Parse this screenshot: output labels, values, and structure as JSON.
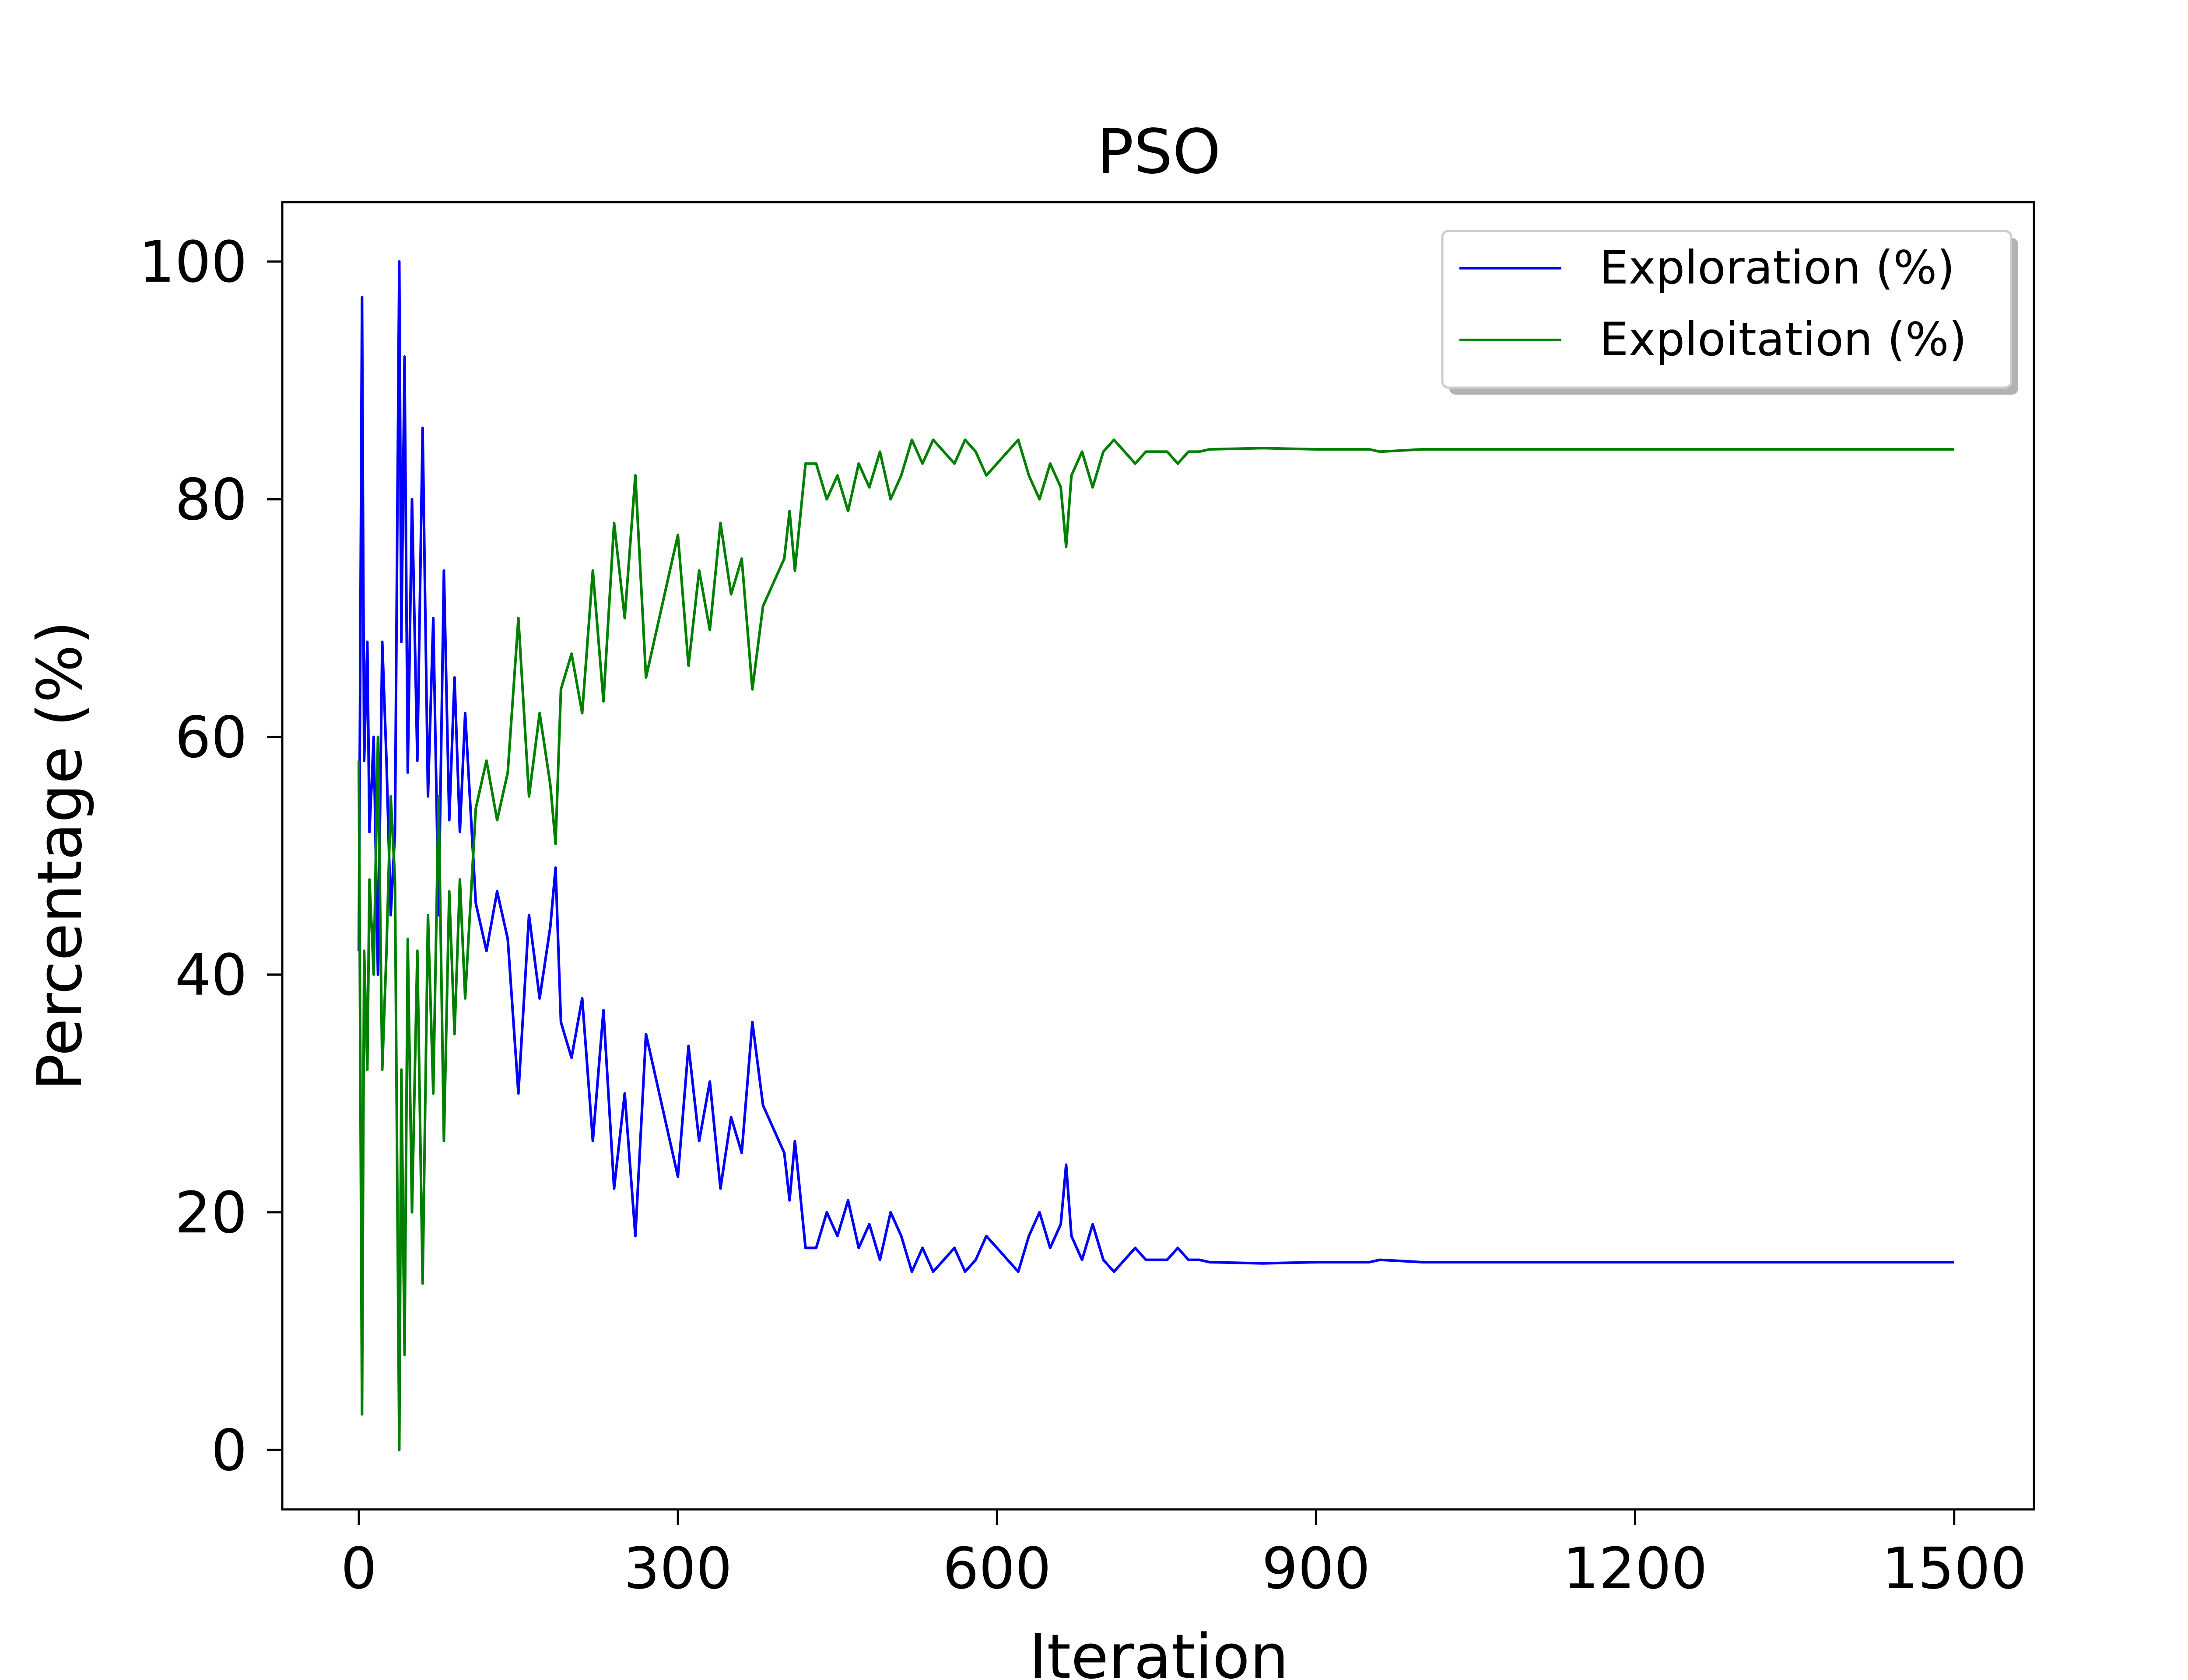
{
  "chart_data": {
    "type": "line",
    "title": "PSO",
    "xlabel": "Iteration",
    "ylabel": "Percentage (%)",
    "xlim": [
      -72,
      1575
    ],
    "ylim": [
      -5,
      105
    ],
    "xticks": [
      0,
      300,
      600,
      900,
      1200,
      1500
    ],
    "xtick_labels": [
      "0",
      "300",
      "600",
      "900",
      "1200",
      "1500"
    ],
    "yticks": [
      0,
      20,
      40,
      60,
      80,
      100
    ],
    "ytick_labels": [
      "0",
      "20",
      "40",
      "60",
      "80",
      "100"
    ],
    "grid": false,
    "legend_position": "top-right",
    "series": [
      {
        "name": "Exploration (%)",
        "color": "#0000ff",
        "x": [
          0,
          3,
          5,
          8,
          10,
          14,
          18,
          22,
          26,
          30,
          34,
          38,
          40,
          43,
          46,
          50,
          55,
          60,
          65,
          70,
          75,
          80,
          85,
          90,
          95,
          100,
          110,
          120,
          130,
          140,
          150,
          160,
          170,
          180,
          185,
          190,
          200,
          210,
          220,
          230,
          240,
          250,
          260,
          270,
          280,
          290,
          300,
          310,
          320,
          330,
          340,
          350,
          360,
          370,
          380,
          390,
          400,
          405,
          410,
          420,
          430,
          440,
          450,
          460,
          470,
          480,
          490,
          500,
          510,
          520,
          530,
          540,
          550,
          560,
          570,
          580,
          590,
          600,
          610,
          620,
          630,
          640,
          650,
          660,
          665,
          670,
          680,
          690,
          700,
          710,
          720,
          730,
          740,
          750,
          760,
          770,
          780,
          790,
          800,
          850,
          900,
          950,
          960,
          1000,
          1100,
          1200,
          1300,
          1400,
          1500
        ],
        "y": [
          42,
          97,
          58,
          68,
          52,
          60,
          40,
          68,
          58,
          45,
          52,
          100,
          68,
          92,
          57,
          80,
          58,
          86,
          55,
          70,
          45,
          74,
          53,
          65,
          52,
          62,
          46,
          42,
          47,
          43,
          30,
          45,
          38,
          44,
          49,
          36,
          33,
          38,
          26,
          37,
          22,
          30,
          18,
          35,
          31,
          27,
          23,
          34,
          26,
          31,
          22,
          28,
          25,
          36,
          29,
          27,
          25,
          21,
          26,
          17,
          17,
          20,
          18,
          21,
          17,
          19,
          16,
          20,
          18,
          15,
          17,
          15,
          16,
          17,
          15,
          16,
          18,
          17,
          16,
          15,
          18,
          20,
          17,
          19,
          24,
          18,
          16,
          19,
          16,
          15,
          16,
          17,
          16,
          16,
          16,
          17,
          16,
          16,
          15.8,
          15.7,
          15.8,
          15.8,
          16,
          15.8,
          15.8,
          15.8,
          15.8,
          15.8,
          15.8
        ]
      },
      {
        "name": "Exploitation (%)",
        "color": "#008000",
        "x": [
          0,
          3,
          5,
          8,
          10,
          14,
          18,
          22,
          26,
          30,
          34,
          38,
          40,
          43,
          46,
          50,
          55,
          60,
          65,
          70,
          75,
          80,
          85,
          90,
          95,
          100,
          110,
          120,
          130,
          140,
          150,
          160,
          170,
          180,
          185,
          190,
          200,
          210,
          220,
          230,
          240,
          250,
          260,
          270,
          280,
          290,
          300,
          310,
          320,
          330,
          340,
          350,
          360,
          370,
          380,
          390,
          400,
          405,
          410,
          420,
          430,
          440,
          450,
          460,
          470,
          480,
          490,
          500,
          510,
          520,
          530,
          540,
          550,
          560,
          570,
          580,
          590,
          600,
          610,
          620,
          630,
          640,
          650,
          660,
          665,
          670,
          680,
          690,
          700,
          710,
          720,
          730,
          740,
          750,
          760,
          770,
          780,
          790,
          800,
          850,
          900,
          950,
          960,
          1000,
          1100,
          1200,
          1300,
          1400,
          1500
        ],
        "y": [
          58,
          3,
          42,
          32,
          48,
          40,
          60,
          32,
          42,
          55,
          48,
          0,
          32,
          8,
          43,
          20,
          42,
          14,
          45,
          30,
          55,
          26,
          47,
          35,
          48,
          38,
          54,
          58,
          53,
          57,
          70,
          55,
          62,
          56,
          51,
          64,
          67,
          62,
          74,
          63,
          78,
          70,
          82,
          65,
          69,
          73,
          77,
          66,
          74,
          69,
          78,
          72,
          75,
          64,
          71,
          73,
          75,
          79,
          74,
          83,
          83,
          80,
          82,
          79,
          83,
          81,
          84,
          80,
          82,
          85,
          83,
          85,
          84,
          83,
          85,
          84,
          82,
          83,
          84,
          85,
          82,
          80,
          83,
          81,
          76,
          82,
          84,
          81,
          84,
          85,
          84,
          83,
          84,
          84,
          84,
          83,
          84,
          84,
          84.2,
          84.3,
          84.2,
          84.2,
          84,
          84.2,
          84.2,
          84.2,
          84.2,
          84.2,
          84.2
        ]
      }
    ]
  }
}
